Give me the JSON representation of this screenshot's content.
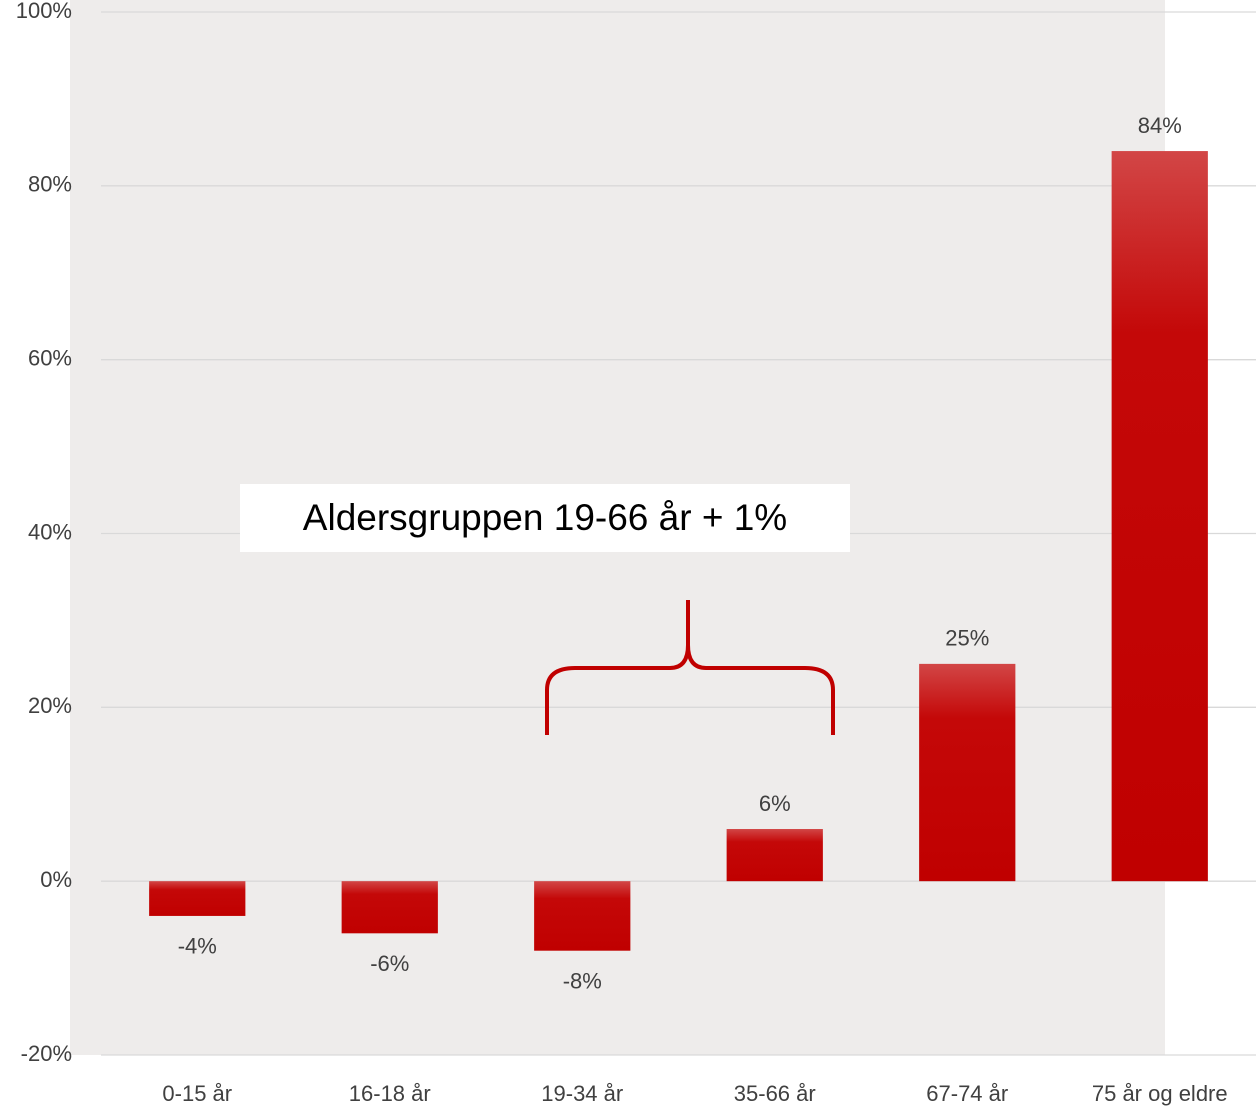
{
  "chart_data": {
    "type": "bar",
    "categories": [
      "0-15 år",
      "16-18 år",
      "19-34 år",
      "35-66 år",
      "67-74 år",
      "75 år og eldre"
    ],
    "values": [
      -4,
      -6,
      -8,
      6,
      25,
      84
    ],
    "value_labels": [
      "-4%",
      "-6%",
      "-8%",
      "6%",
      "25%",
      "84%"
    ],
    "color": "#c00000",
    "ylim": [
      -20,
      100
    ],
    "yticks": [
      {
        "value": -20,
        "label": "-20%"
      },
      {
        "value": 0,
        "label": "0%"
      },
      {
        "value": 20,
        "label": "20%"
      },
      {
        "value": 40,
        "label": "40%"
      },
      {
        "value": 60,
        "label": "60%"
      },
      {
        "value": 80,
        "label": "80%"
      },
      {
        "value": 100,
        "label": "100%"
      }
    ],
    "grid": true,
    "annotation": "Aldersgruppen 19-66 år + 1%"
  }
}
